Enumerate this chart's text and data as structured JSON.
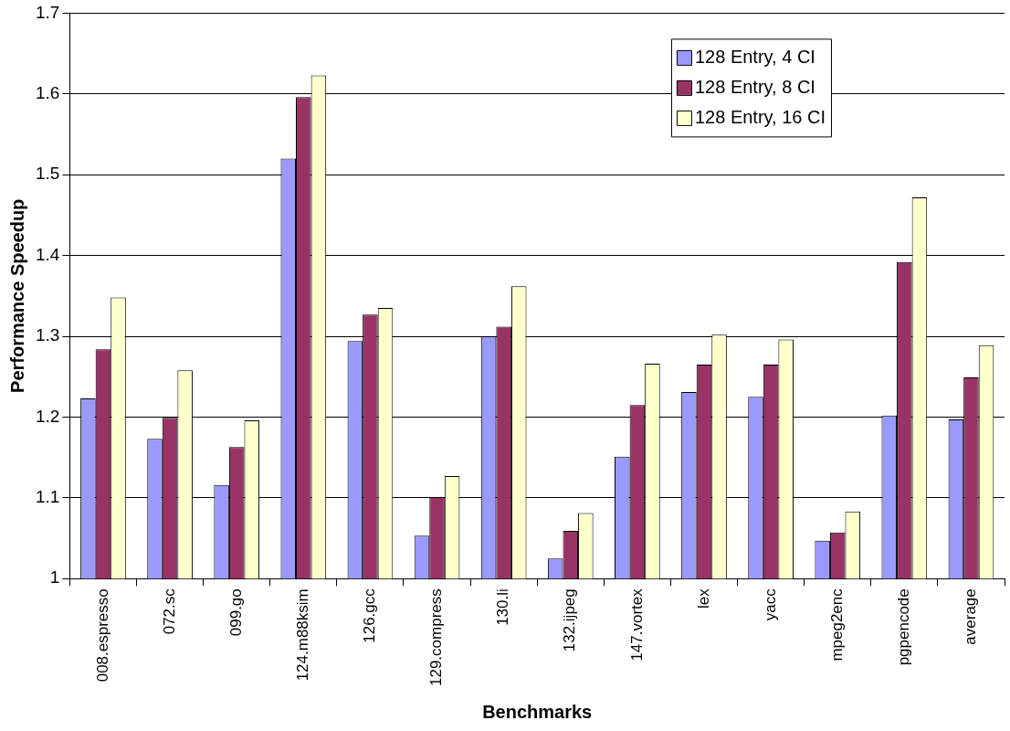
{
  "chart_data": {
    "type": "bar",
    "xlabel": "Benchmarks",
    "ylabel": "Performance Speedup",
    "categories": [
      "008.espresso",
      "072.sc",
      "099.go",
      "124.m88ksim",
      "126.gcc",
      "129.compress",
      "130.li",
      "132.ijpeg",
      "147.vortex",
      "lex",
      "yacc",
      "mpeg2enc",
      "pgpencode",
      "average"
    ],
    "series": [
      {
        "name": "128 Entry, 4 CI",
        "color": "#9999ff",
        "values": [
          1.223,
          1.173,
          1.116,
          1.52,
          1.294,
          1.053,
          1.3,
          1.025,
          1.151,
          1.231,
          1.225,
          1.047,
          1.202,
          1.197
        ]
      },
      {
        "name": "128 Entry, 8 CI",
        "color": "#993366",
        "values": [
          1.284,
          1.199,
          1.163,
          1.596,
          1.327,
          1.101,
          1.312,
          1.059,
          1.215,
          1.265,
          1.265,
          1.057,
          1.392,
          1.249
        ]
      },
      {
        "name": "128 Entry, 16 CI",
        "color": "#ffffcc",
        "values": [
          1.348,
          1.258,
          1.196,
          1.623,
          1.335,
          1.127,
          1.362,
          1.081,
          1.266,
          1.302,
          1.296,
          1.083,
          1.472,
          1.289
        ]
      }
    ],
    "ylim": [
      1,
      1.7
    ],
    "yticks": [
      1,
      1.1,
      1.2,
      1.3,
      1.4,
      1.5,
      1.6,
      1.7
    ],
    "grid": "y",
    "legend": "top right"
  }
}
